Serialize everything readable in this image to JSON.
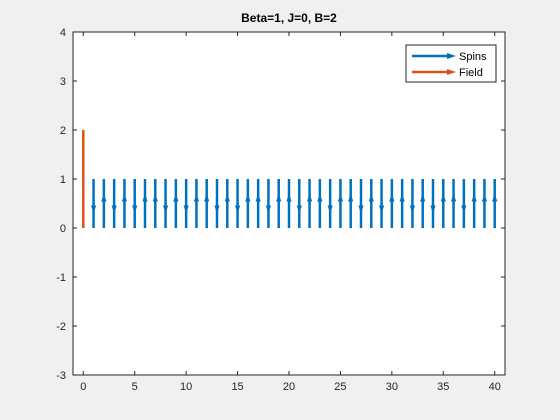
{
  "chart_data": {
    "type": "quiver",
    "title": "Beta=1, J=0, B=2",
    "xlim": [
      -1,
      41
    ],
    "ylim": [
      -3,
      4
    ],
    "x_ticks": [
      0,
      5,
      10,
      15,
      20,
      25,
      30,
      35,
      40
    ],
    "y_ticks": [
      -3,
      -2,
      -1,
      0,
      1,
      2,
      3,
      4
    ],
    "grid": false,
    "legend_position": "top-right",
    "colors": {
      "spins": "#0072bd",
      "field": "#d95319"
    },
    "series": [
      {
        "name": "Spins",
        "positions": [
          1,
          2,
          3,
          4,
          5,
          6,
          7,
          8,
          9,
          10,
          11,
          12,
          13,
          14,
          15,
          16,
          17,
          18,
          19,
          20,
          21,
          22,
          23,
          24,
          25,
          26,
          27,
          28,
          29,
          30,
          31,
          32,
          33,
          34,
          35,
          36,
          37,
          38,
          39,
          40
        ],
        "directions": [
          -1,
          1,
          -1,
          1,
          -1,
          1,
          1,
          -1,
          1,
          -1,
          1,
          1,
          -1,
          1,
          -1,
          1,
          1,
          -1,
          1,
          1,
          -1,
          1,
          1,
          -1,
          1,
          1,
          -1,
          1,
          -1,
          1,
          1,
          -1,
          1,
          -1,
          1,
          1,
          -1,
          1,
          1,
          1
        ]
      },
      {
        "name": "Field",
        "x": 0,
        "y0": 0,
        "y1": 2
      }
    ]
  }
}
